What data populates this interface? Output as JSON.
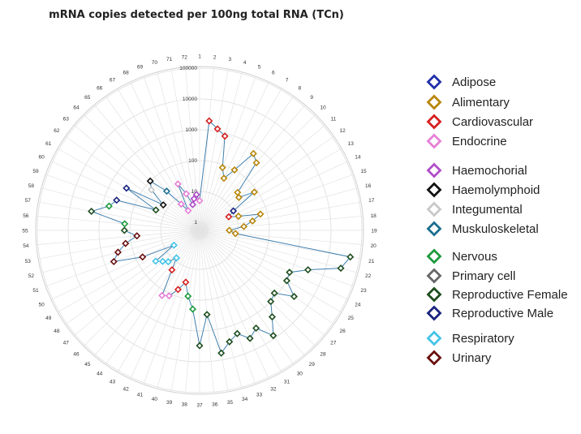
{
  "chart_data": {
    "type": "radar",
    "title": "mRNA copies detected per 100ng total RNA (TCn)",
    "scale": "log10",
    "rlim": [
      1,
      100000
    ],
    "ring_labels": [
      "1",
      "10",
      "100",
      "1000",
      "10000",
      "100000"
    ],
    "spokes": [
      "1",
      "2",
      "3",
      "4",
      "5",
      "6",
      "7",
      "8",
      "9",
      "10",
      "11",
      "12",
      "13",
      "14",
      "15",
      "16",
      "17",
      "18",
      "19",
      "20",
      "21",
      "22",
      "23",
      "24",
      "25",
      "26",
      "27",
      "28",
      "29",
      "30",
      "31",
      "32",
      "33",
      "34",
      "35",
      "36",
      "37",
      "38",
      "39",
      "40",
      "41",
      "42",
      "43",
      "44",
      "45",
      "46",
      "47",
      "48",
      "49",
      "50",
      "51",
      "52",
      "53",
      "54",
      "55",
      "56",
      "57",
      "58",
      "59",
      "60",
      "61",
      "62",
      "63",
      "64",
      "65",
      "66",
      "67",
      "68",
      "69",
      "70",
      "71",
      "72"
    ],
    "legend": [
      {
        "name": "Adipose",
        "color": "#1f2fa8"
      },
      {
        "name": "Alimentary",
        "color": "#b8860b"
      },
      {
        "name": "Cardiovascular",
        "color": "#d62020"
      },
      {
        "name": "Endocrine",
        "color": "#e67fd6"
      },
      {
        "name": "Haemochorial",
        "color": "#b04ec8"
      },
      {
        "name": "Haemolymphoid",
        "color": "#111111"
      },
      {
        "name": "Integumental",
        "color": "#c8c8c8"
      },
      {
        "name": "Muskuloskeletal",
        "color": "#1b6e8e"
      },
      {
        "name": "Nervous",
        "color": "#1e9a3e"
      },
      {
        "name": "Primary cell",
        "color": "#666666"
      },
      {
        "name": "Reproductive Female",
        "color": "#1d4d1d"
      },
      {
        "name": "Reproductive Male",
        "color": "#1a237e"
      },
      {
        "name": "Respiratory",
        "color": "#45c4e8"
      },
      {
        "name": "Urinary",
        "color": "#6b1010"
      }
    ],
    "points": [
      {
        "spoke": 1,
        "value": 5,
        "tissue": "Endocrine"
      },
      {
        "spoke": 2,
        "value": 2000,
        "tissue": "Cardiovascular"
      },
      {
        "spoke": 3,
        "value": 1200,
        "tissue": "Cardiovascular"
      },
      {
        "spoke": 4,
        "value": 800,
        "tissue": "Cardiovascular"
      },
      {
        "spoke": 5,
        "value": 80,
        "tissue": "Alimentary"
      },
      {
        "spoke": 6,
        "value": 40,
        "tissue": "Alimentary"
      },
      {
        "spoke": 7,
        "value": 100,
        "tissue": "Alimentary"
      },
      {
        "spoke": 8,
        "value": 600,
        "tissue": "Alimentary"
      },
      {
        "spoke": 9,
        "value": 400,
        "tissue": "Alimentary"
      },
      {
        "spoke": 10,
        "value": 30,
        "tissue": "Alimentary"
      },
      {
        "spoke": 11,
        "value": 25,
        "tissue": "Alimentary"
      },
      {
        "spoke": 12,
        "value": 80,
        "tissue": "Alimentary"
      },
      {
        "spoke": 13,
        "value": 10,
        "tissue": "Reproductive Male"
      },
      {
        "spoke": 14,
        "value": 6,
        "tissue": "Cardiovascular"
      },
      {
        "spoke": 15,
        "value": 12,
        "tissue": "Alimentary"
      },
      {
        "spoke": 16,
        "value": 60,
        "tissue": "Alimentary"
      },
      {
        "spoke": 17,
        "value": 30,
        "tissue": "Alimentary"
      },
      {
        "spoke": 18,
        "value": 15,
        "tissue": "Alimentary"
      },
      {
        "spoke": 19,
        "value": 5,
        "tissue": "Alimentary"
      },
      {
        "spoke": 20,
        "value": 8,
        "tissue": "Alimentary"
      },
      {
        "spoke": 21,
        "value": 50000,
        "tissue": "Reproductive Female"
      },
      {
        "spoke": 22,
        "value": 30000,
        "tissue": "Reproductive Female"
      },
      {
        "spoke": 23,
        "value": 3000,
        "tissue": "Reproductive Female"
      },
      {
        "spoke": 24,
        "value": 900,
        "tissue": "Reproductive Female"
      },
      {
        "spoke": 25,
        "value": 1000,
        "tissue": "Reproductive Female"
      },
      {
        "spoke": 26,
        "value": 3000,
        "tissue": "Reproductive Female"
      },
      {
        "spoke": 27,
        "value": 800,
        "tissue": "Reproductive Female"
      },
      {
        "spoke": 28,
        "value": 1000,
        "tissue": "Reproductive Female"
      },
      {
        "spoke": 29,
        "value": 2500,
        "tissue": "Reproductive Female"
      },
      {
        "spoke": 30,
        "value": 8000,
        "tissue": "Reproductive Female"
      },
      {
        "spoke": 31,
        "value": 2500,
        "tissue": "Reproductive Female"
      },
      {
        "spoke": 32,
        "value": 4000,
        "tissue": "Reproductive Female"
      },
      {
        "spoke": 33,
        "value": 2000,
        "tissue": "Reproductive Female"
      },
      {
        "spoke": 34,
        "value": 3000,
        "tissue": "Reproductive Female"
      },
      {
        "spoke": 35,
        "value": 6000,
        "tissue": "Reproductive Female"
      },
      {
        "spoke": 36,
        "value": 300,
        "tissue": "Reproductive Female"
      },
      {
        "spoke": 37,
        "value": 3000,
        "tissue": "Reproductive Female"
      },
      {
        "spoke": 38,
        "value": 200,
        "tissue": "Nervous"
      },
      {
        "spoke": 39,
        "value": 80,
        "tissue": "Nervous"
      },
      {
        "spoke": 40,
        "value": 30,
        "tissue": "Cardiovascular"
      },
      {
        "spoke": 41,
        "value": 60,
        "tissue": "Cardiovascular"
      },
      {
        "spoke": 42,
        "value": 120,
        "tissue": "Endocrine"
      },
      {
        "spoke": 43,
        "value": 150,
        "tissue": "Endocrine"
      },
      {
        "spoke": 44,
        "value": 20,
        "tissue": "Cardiovascular"
      },
      {
        "spoke": 45,
        "value": 8,
        "tissue": "Respiratory"
      },
      {
        "spoke": 46,
        "value": 15,
        "tissue": "Respiratory"
      },
      {
        "spoke": 47,
        "value": 20,
        "tissue": "Respiratory"
      },
      {
        "spoke": 48,
        "value": 30,
        "tissue": "Respiratory"
      },
      {
        "spoke": 49,
        "value": 5,
        "tissue": "Respiratory"
      },
      {
        "spoke": 50,
        "value": 60,
        "tissue": "Urinary"
      },
      {
        "spoke": 51,
        "value": 500,
        "tissue": "Urinary"
      },
      {
        "spoke": 52,
        "value": 300,
        "tissue": "Urinary"
      },
      {
        "spoke": 53,
        "value": 150,
        "tissue": "Urinary"
      },
      {
        "spoke": 54,
        "value": 60,
        "tissue": "Urinary"
      },
      {
        "spoke": 55,
        "value": 150,
        "tissue": "Reproductive Female"
      },
      {
        "spoke": 56,
        "value": 150,
        "tissue": "Nervous"
      },
      {
        "spoke": 57,
        "value": 2000,
        "tissue": "Reproductive Female"
      },
      {
        "spoke": 58,
        "value": 600,
        "tissue": "Nervous"
      },
      {
        "spoke": 59,
        "value": 400,
        "tissue": "Reproductive Male"
      },
      {
        "spoke": 60,
        "value": 20,
        "tissue": "Reproductive Female"
      },
      {
        "spoke": 61,
        "value": 300,
        "tissue": "Reproductive Male"
      },
      {
        "spoke": 62,
        "value": 15,
        "tissue": "Haemolymphoid"
      },
      {
        "spoke": 63,
        "value": 60,
        "tissue": "Integumental"
      },
      {
        "spoke": 64,
        "value": 100,
        "tissue": "Haemolymphoid"
      },
      {
        "spoke": 65,
        "value": 25,
        "tissue": "Muskuloskeletal"
      },
      {
        "spoke": 66,
        "value": 6,
        "tissue": "Endocrine"
      },
      {
        "spoke": 67,
        "value": 3,
        "tissue": "Endocrine"
      },
      {
        "spoke": 68,
        "value": 25,
        "tissue": "Endocrine"
      },
      {
        "spoke": 69,
        "value": 10,
        "tissue": "Endocrine"
      },
      {
        "spoke": 70,
        "value": 4,
        "tissue": "Haemochorial"
      },
      {
        "spoke": 71,
        "value": 6,
        "tissue": "Haemochorial"
      },
      {
        "spoke": 72,
        "value": 8,
        "tissue": "Haemochorial"
      }
    ]
  }
}
